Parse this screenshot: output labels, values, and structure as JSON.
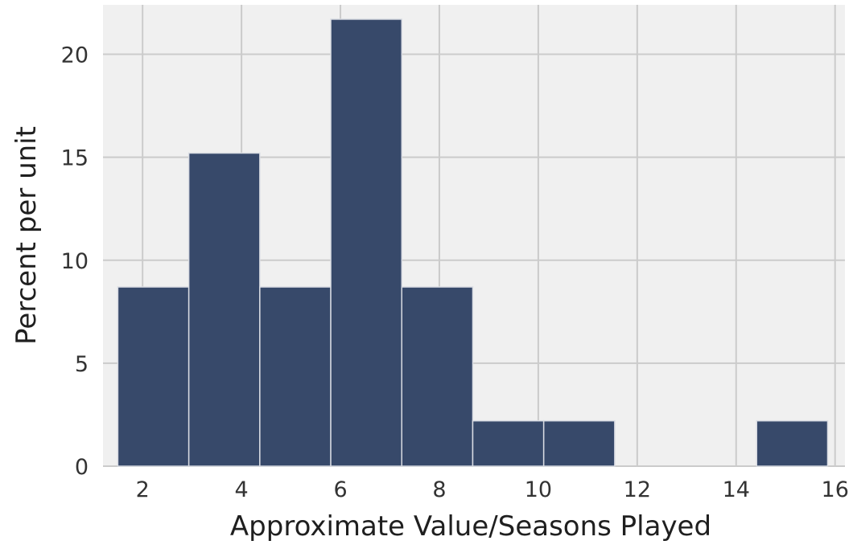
{
  "chart_data": {
    "type": "bar",
    "title": "",
    "xlabel": "Approximate Value/Seasons Played",
    "ylabel": "Percent per unit",
    "xlim": [
      1.2,
      16.2
    ],
    "ylim": [
      0,
      22.4
    ],
    "xticks": [
      2,
      4,
      6,
      8,
      10,
      12,
      14,
      16
    ],
    "yticks": [
      0,
      5,
      10,
      15,
      20
    ],
    "grid": true,
    "colors": {
      "bar": "#37496a",
      "bar_edge": "#d8dbe2",
      "plot_bg": "#f0f0f0",
      "grid": "#cbcbcb"
    },
    "bins": [
      {
        "x0": 1.5,
        "x1": 2.935,
        "value": 8.7
      },
      {
        "x0": 2.935,
        "x1": 4.37,
        "value": 15.2
      },
      {
        "x0": 4.37,
        "x1": 5.805,
        "value": 8.7
      },
      {
        "x0": 5.805,
        "x1": 7.24,
        "value": 21.7
      },
      {
        "x0": 7.24,
        "x1": 8.675,
        "value": 8.7
      },
      {
        "x0": 8.675,
        "x1": 10.11,
        "value": 2.2
      },
      {
        "x0": 10.11,
        "x1": 11.545,
        "value": 2.2
      },
      {
        "x0": 11.545,
        "x1": 12.98,
        "value": 0
      },
      {
        "x0": 12.98,
        "x1": 14.415,
        "value": 0
      },
      {
        "x0": 14.415,
        "x1": 15.85,
        "value": 2.2
      }
    ]
  }
}
